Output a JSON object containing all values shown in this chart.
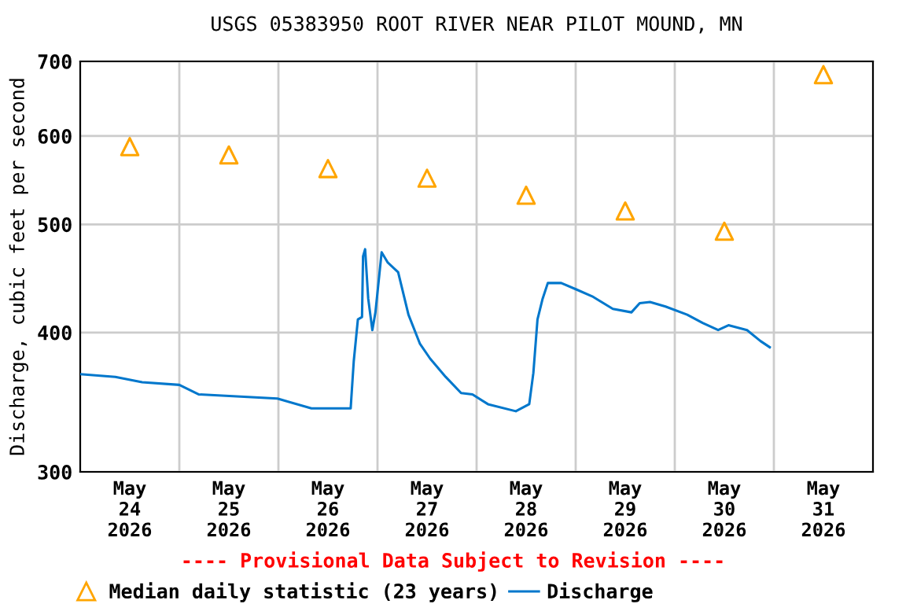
{
  "chart_data": {
    "type": "line",
    "title": "USGS 05383950 ROOT RIVER NEAR PILOT MOUND, MN",
    "ylabel": "Discharge, cubic feet per second",
    "annotations": [
      "---- Provisional Data Subject to Revision ----"
    ],
    "log": "y",
    "ylim": [
      300,
      700
    ],
    "yticks": [
      300,
      400,
      500,
      600,
      700
    ],
    "xlim": [
      "2026-05-24T00:00",
      "2026-06-01T00:00"
    ],
    "xticks": [
      {
        "value": "2026-05-24T12:00",
        "label": "May\n24\n2026"
      },
      {
        "value": "2026-05-25T12:00",
        "label": "May\n25\n2026"
      },
      {
        "value": "2026-05-26T12:00",
        "label": "May\n26\n2026"
      },
      {
        "value": "2026-05-27T12:00",
        "label": "May\n27\n2026"
      },
      {
        "value": "2026-05-28T12:00",
        "label": "May\n28\n2026"
      },
      {
        "value": "2026-05-29T12:00",
        "label": "May\n29\n2026"
      },
      {
        "value": "2026-05-30T12:00",
        "label": "May\n30\n2026"
      },
      {
        "value": "2026-05-31T12:00",
        "label": "May\n31\n2026"
      },
      {
        "value": "2026-05-25T00:00",
        "label": null
      },
      {
        "value": "2026-05-26T00:00",
        "label": null
      },
      {
        "value": "2026-05-27T00:00",
        "label": null
      },
      {
        "value": "2026-05-28T00:00",
        "label": null
      },
      {
        "value": "2026-05-29T00:00",
        "label": null
      },
      {
        "value": "2026-05-30T00:00",
        "label": null
      },
      {
        "value": "2026-05-31T00:00",
        "label": null
      }
    ],
    "grid": true,
    "legend": "bottom",
    "series": [
      {
        "name": "Median daily statistic (23 years)",
        "type": "scatter",
        "marker": "triangle",
        "color": "#ffa500",
        "x": [
          "2026-05-24T12:00",
          "2026-05-25T12:00",
          "2026-05-26T12:00",
          "2026-05-27T12:00",
          "2026-05-28T12:00",
          "2026-05-29T12:00",
          "2026-05-30T12:00",
          "2026-05-31T12:00"
        ],
        "values": [
          587,
          577,
          561,
          550,
          531,
          514,
          493,
          681
        ]
      },
      {
        "name": "Discharge",
        "marker": "none",
        "line_style": "solid",
        "color": "#0077cc",
        "x": [
          "2026-05-24T00:00",
          "2026-05-24T08:30",
          "2026-05-24T15:00",
          "2026-05-25T00:00",
          "2026-05-25T04:45",
          "2026-05-25T23:45",
          "2026-05-26T08:00",
          "2026-05-26T17:30",
          "2026-05-26T18:15",
          "2026-05-26T19:15",
          "2026-05-26T20:15",
          "2026-05-26T20:30",
          "2026-05-26T21:00",
          "2026-05-26T21:45",
          "2026-05-26T22:45",
          "2026-05-26T23:30",
          "2026-05-27T01:00",
          "2026-05-27T02:30",
          "2026-05-27T05:00",
          "2026-05-27T07:30",
          "2026-05-27T10:15",
          "2026-05-27T12:45",
          "2026-05-27T16:30",
          "2026-05-27T20:15",
          "2026-05-27T23:00",
          "2026-05-28T02:45",
          "2026-05-28T09:30",
          "2026-05-28T12:45",
          "2026-05-28T13:45",
          "2026-05-28T14:45",
          "2026-05-28T16:00",
          "2026-05-28T17:15",
          "2026-05-28T20:30",
          "2026-05-29T00:15",
          "2026-05-29T04:00",
          "2026-05-29T09:00",
          "2026-05-29T13:30",
          "2026-05-29T15:30",
          "2026-05-29T18:00",
          "2026-05-29T21:45",
          "2026-05-30T03:00",
          "2026-05-30T06:45",
          "2026-05-30T10:30",
          "2026-05-30T13:00",
          "2026-05-30T17:30",
          "2026-05-30T20:45",
          "2026-05-30T23:00"
        ],
        "values": [
          367,
          365,
          361,
          359,
          352,
          349,
          342,
          342,
          377,
          411,
          413,
          468,
          475,
          429,
          402,
          417,
          472,
          462,
          453,
          415,
          391,
          379,
          365,
          353,
          352,
          345,
          340,
          345,
          368,
          411,
          429,
          443,
          443,
          437,
          431,
          420,
          417,
          425,
          426,
          422,
          415,
          408,
          402,
          406,
          402,
          393,
          388
        ]
      }
    ]
  }
}
